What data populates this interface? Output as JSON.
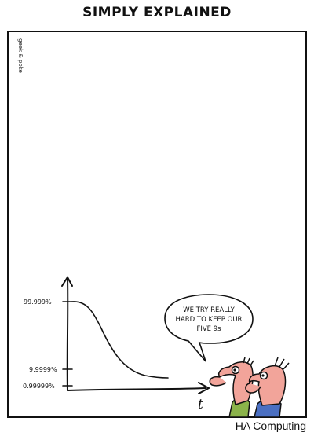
{
  "comic": {
    "title": "SIMPLY EXPLAINED",
    "credit": "geek & poke",
    "caption": "HA Computing",
    "speech_lines": [
      "WE TRY REALLY",
      "HARD TO KEEP OUR",
      "FIVE 9s"
    ]
  },
  "graph": {
    "y_ticks": [
      "99.999%",
      "9.9999%",
      "0.99999%"
    ],
    "x_label": "t"
  }
}
